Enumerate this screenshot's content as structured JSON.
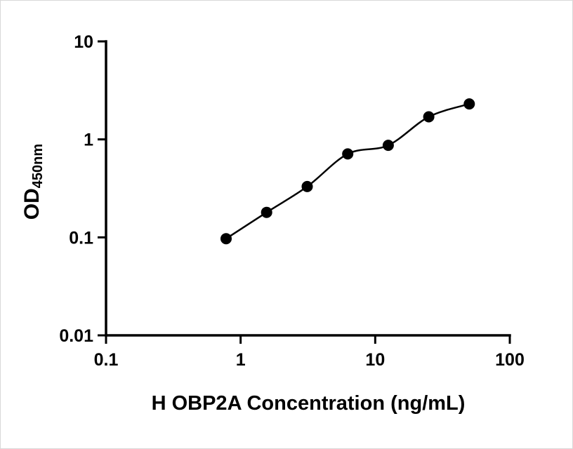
{
  "chart_data": {
    "type": "scatter",
    "title": "",
    "xlabel": "H OBP2A Concentration (ng/mL)",
    "ylabel_main": "OD",
    "ylabel_sub": "450nm",
    "xscale": "log",
    "yscale": "log",
    "xlim": [
      0.1,
      100
    ],
    "ylim": [
      0.01,
      10
    ],
    "x_ticks": [
      0.1,
      1,
      10,
      100
    ],
    "x_tick_labels": [
      "0.1",
      "1",
      "10",
      "100"
    ],
    "y_ticks": [
      10,
      1,
      0.1,
      0.01
    ],
    "y_tick_labels": [
      "10",
      "1",
      "0.1",
      "0.01"
    ],
    "points": {
      "x": [
        0.78,
        1.56,
        3.125,
        6.25,
        12.5,
        25,
        50
      ],
      "y": [
        0.097,
        0.18,
        0.33,
        0.71,
        0.87,
        1.7,
        2.3
      ]
    },
    "fit_curve": true,
    "marker_color": "#000000",
    "line_color": "#000000",
    "axis_color": "#000000",
    "grid": "off",
    "legend": "none"
  }
}
